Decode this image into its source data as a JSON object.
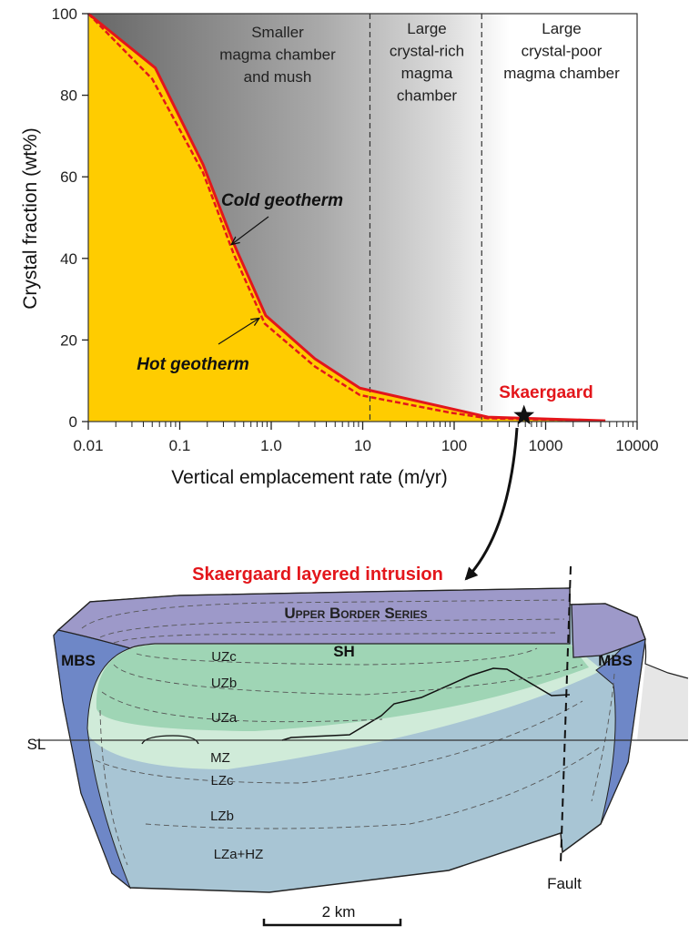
{
  "chart_data": {
    "type": "area",
    "xlabel": "Vertical emplacement rate (m/yr)",
    "ylabel": "Crystal fraction (wt%)",
    "xscale": "log",
    "xlim": [
      0.01,
      10000
    ],
    "ylim": [
      0,
      100
    ],
    "x_ticks": [
      "0.01",
      "0.1",
      "1.0",
      "10",
      "100",
      "1000",
      "10000"
    ],
    "y_ticks": [
      "0",
      "20",
      "40",
      "60",
      "80",
      "100"
    ],
    "grid": false,
    "series": [
      {
        "name": "Cold geotherm",
        "style": "solid",
        "color": "#e3161b",
        "x": [
          0.01,
          0.054,
          0.18,
          0.39,
          0.87,
          3.0,
          9.3,
          91,
          234,
          4500
        ],
        "y": [
          100,
          86.7,
          63,
          43.6,
          26,
          15.4,
          8.2,
          3.2,
          1.1,
          0.2
        ]
      },
      {
        "name": "Hot geotherm",
        "style": "dashed",
        "color": "#e3161b",
        "x": [
          0.01,
          0.05,
          0.18,
          0.39,
          0.85,
          3.0,
          9.3,
          90,
          234,
          4500
        ],
        "y": [
          100,
          84,
          61,
          41,
          24,
          13.5,
          6.5,
          2.2,
          0.8,
          0.2
        ]
      }
    ],
    "fill_color": "#ffcc00",
    "region_boundaries": [
      12,
      200
    ],
    "regions": [
      {
        "lines": [
          "Smaller",
          "magma chamber",
          "and mush"
        ]
      },
      {
        "lines": [
          "Large",
          "crystal-rich",
          "magma",
          "chamber"
        ]
      },
      {
        "lines": [
          "Large",
          "crystal-poor",
          "magma chamber"
        ]
      }
    ],
    "annotations": {
      "cold": "Cold geotherm",
      "hot": "Hot geotherm",
      "skaergaard": "Skaergaard",
      "skaergaard_point": {
        "x": 580,
        "y": 1
      }
    }
  },
  "diagram": {
    "title": "Skaergaard layered intrusion",
    "title_color": "#e3161b",
    "labels": {
      "ubs": "Upper Border Series",
      "sh": "SH",
      "mbs_left": "MBS",
      "mbs_right": "MBS",
      "uzc": "UZc",
      "uzb": "UZb",
      "uza": "UZa",
      "mz": "MZ",
      "lzc": "LZc",
      "lzb": "LZb",
      "lza_hz": "LZa+HZ",
      "sl": "SL",
      "fault": "Fault",
      "scale": "2 km"
    },
    "colors": {
      "ubs": "#9d99c9",
      "mbs": "#6e87c7",
      "uz": "#9fd5b5",
      "mz": "#d0ebd9",
      "lz": "#a8c5d4",
      "country": "#e6e6e6"
    }
  }
}
